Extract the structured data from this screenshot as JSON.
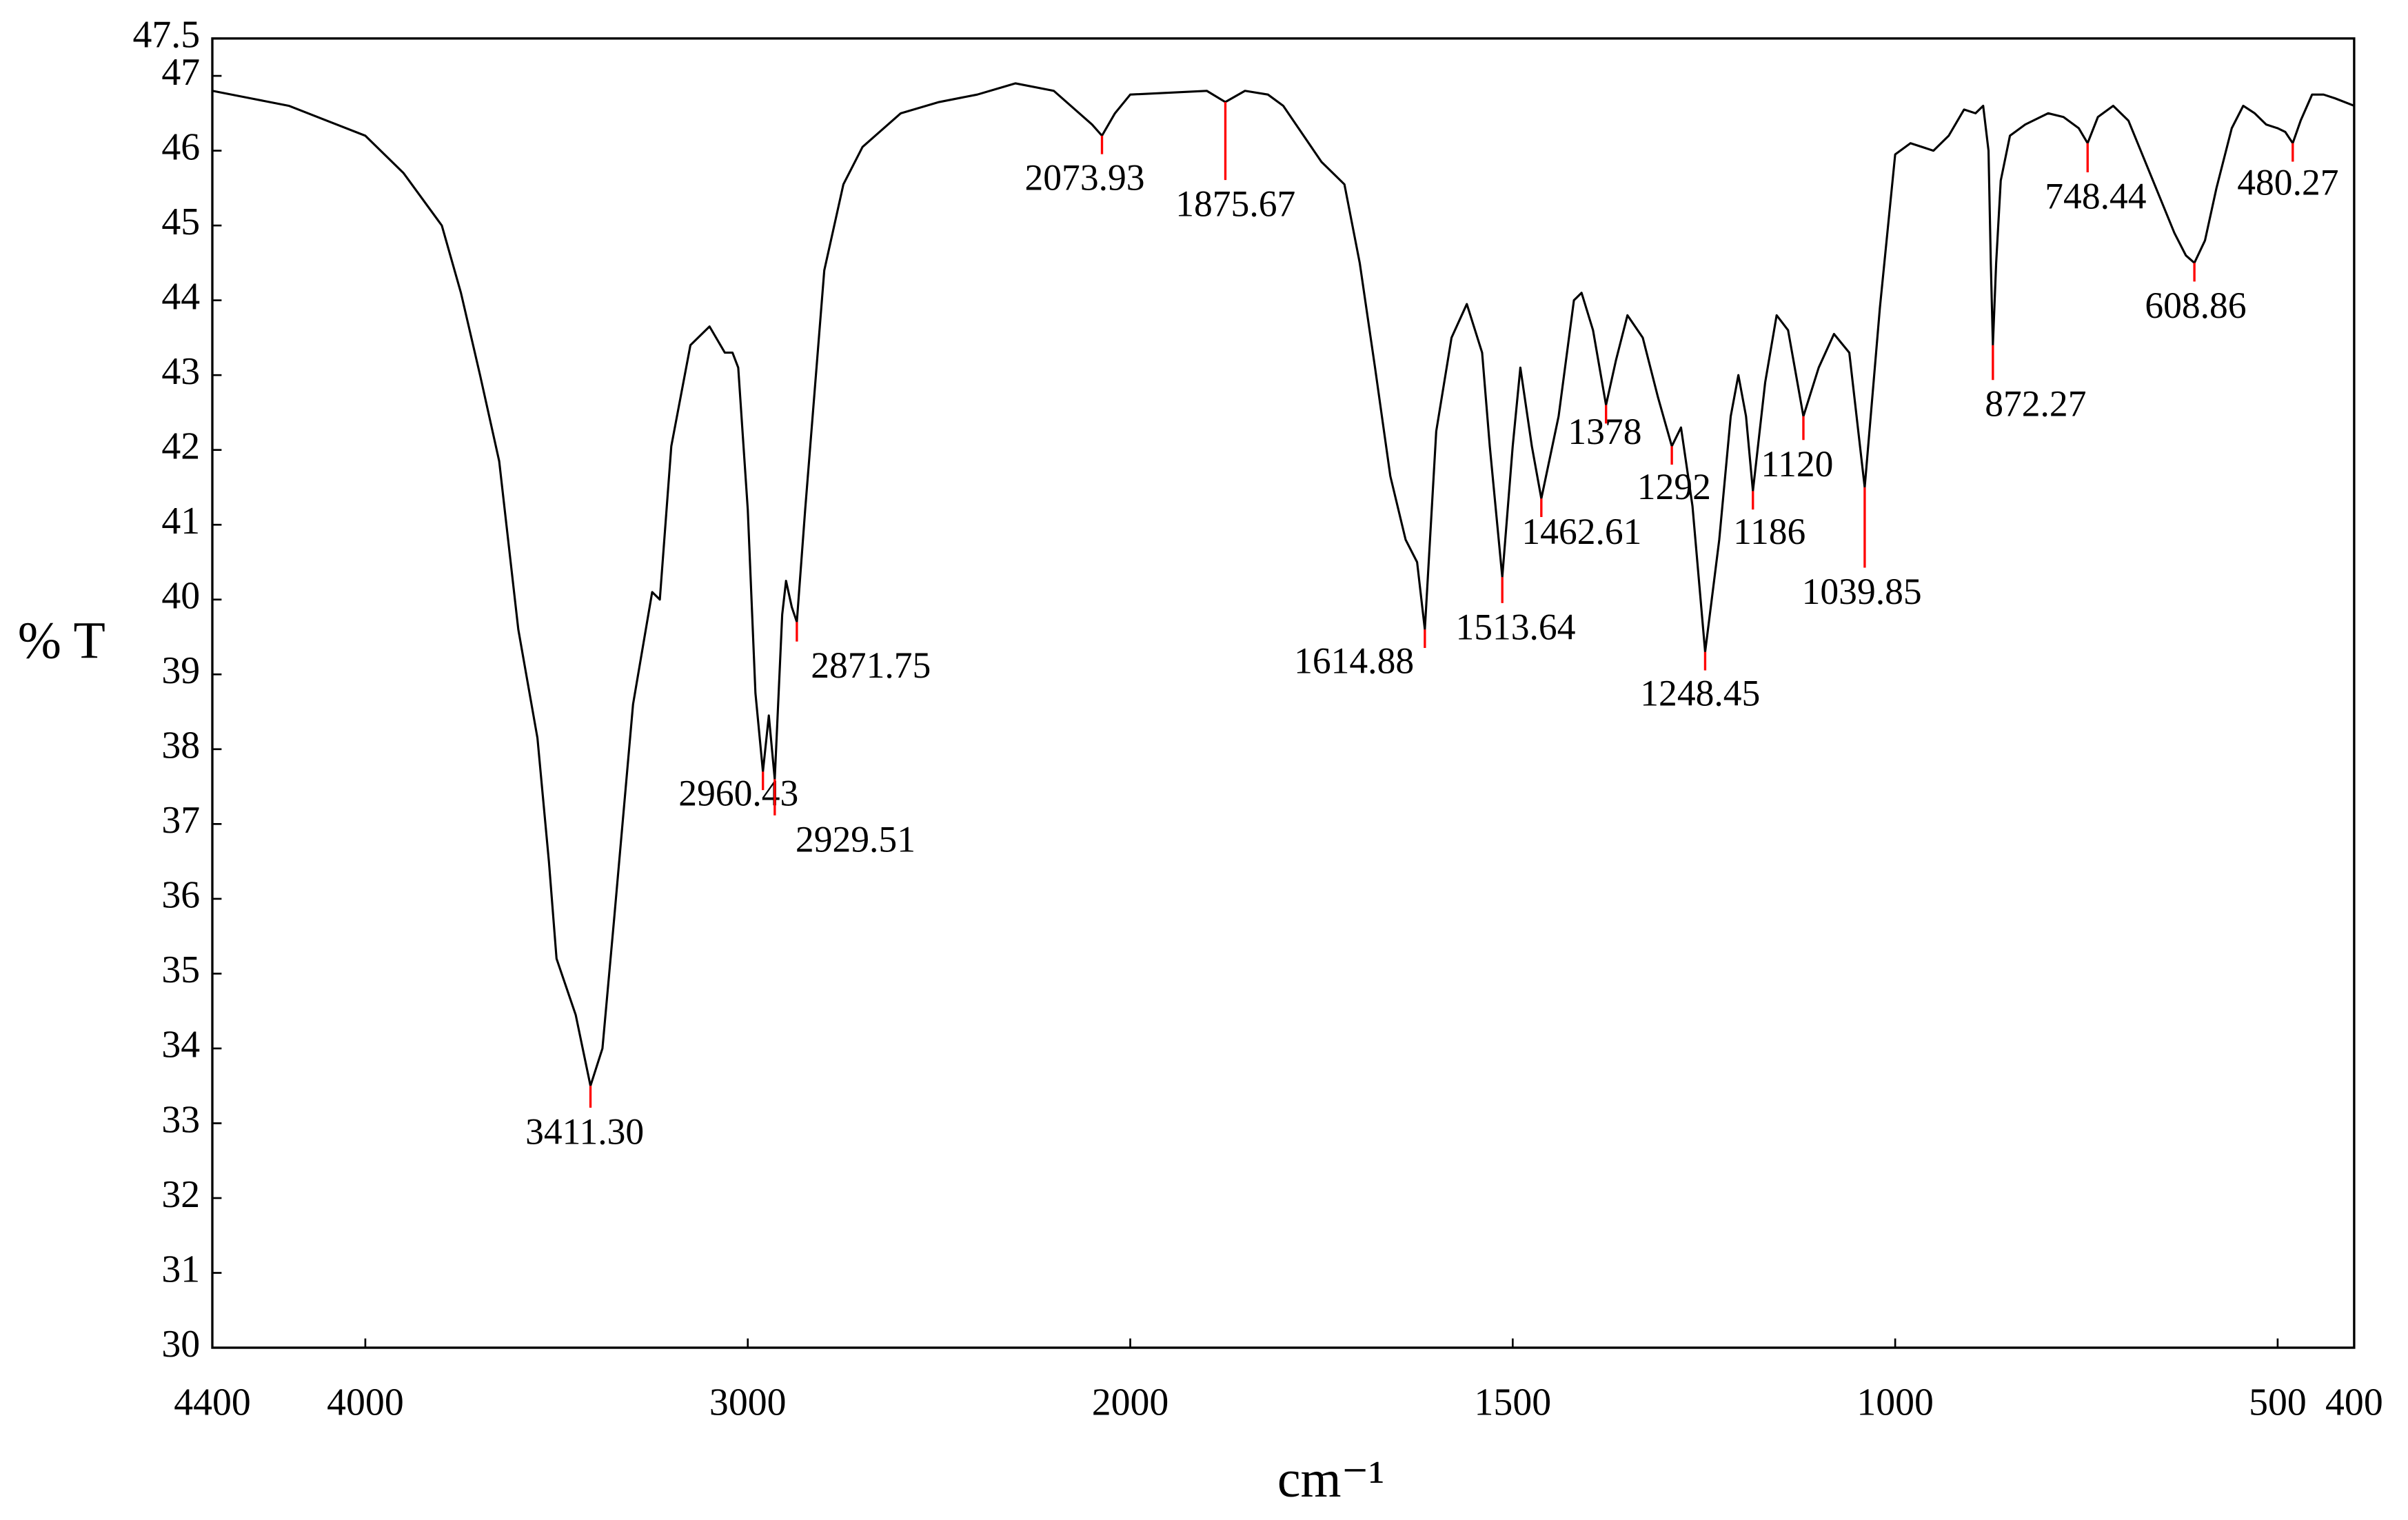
{
  "chart_data": {
    "type": "line",
    "xlabel": "cm⁻¹",
    "ylabel": "% T",
    "color": "#000000",
    "peak_color": "#ff0000",
    "grid": false,
    "xlim": [
      4400,
      400
    ],
    "x_scale_change": {
      "at": 2000,
      "factor": 2
    },
    "xticks": [
      4400,
      4000,
      3000,
      2000,
      1500,
      1000,
      500,
      400
    ],
    "ylim": [
      30,
      47.5
    ],
    "yticks": [
      30,
      31,
      32,
      33,
      34,
      35,
      36,
      37,
      38,
      39,
      40,
      41,
      42,
      43,
      44,
      45,
      46,
      47,
      47.5
    ],
    "x": [
      4400,
      4300,
      4200,
      4100,
      4000,
      3900,
      3800,
      3750,
      3700,
      3650,
      3600,
      3550,
      3520,
      3500,
      3450,
      3411.3,
      3380,
      3350,
      3300,
      3250,
      3230,
      3200,
      3150,
      3100,
      3060,
      3040,
      3025,
      3000,
      2980,
      2960.43,
      2945,
      2929.51,
      2910,
      2900,
      2885,
      2871.75,
      2850,
      2800,
      2750,
      2700,
      2600,
      2500,
      2400,
      2300,
      2200,
      2100,
      2073.93,
      2040,
      2000,
      1900,
      1875.67,
      1850,
      1820,
      1800,
      1780,
      1750,
      1720,
      1700,
      1680,
      1660,
      1640,
      1625,
      1614.88,
      1600,
      1580,
      1560,
      1540,
      1530,
      1513.64,
      1500,
      1490,
      1475,
      1462.61,
      1440,
      1420,
      1410,
      1395,
      1378,
      1365,
      1350,
      1330,
      1310,
      1292,
      1280,
      1265,
      1248.45,
      1230,
      1215,
      1205,
      1195,
      1186,
      1170,
      1155,
      1140,
      1120,
      1100,
      1080,
      1060,
      1039.85,
      1020,
      1000,
      980,
      950,
      930,
      910,
      895,
      885,
      878,
      875,
      872.27,
      868,
      862,
      850,
      830,
      800,
      780,
      760,
      748.44,
      735,
      715,
      695,
      675,
      655,
      635,
      620,
      608.86,
      595,
      580,
      560,
      545,
      530,
      515,
      500,
      490,
      480.27,
      470,
      455,
      440,
      425,
      400
    ],
    "values": [
      46.8,
      46.7,
      46.6,
      46.4,
      46.2,
      45.7,
      45.0,
      44.1,
      43.0,
      41.85,
      39.6,
      38.15,
      36.5,
      35.2,
      34.45,
      33.5,
      34.0,
      35.7,
      38.6,
      40.1,
      40.0,
      42.05,
      43.4,
      43.65,
      43.3,
      43.3,
      43.1,
      41.2,
      38.75,
      37.7,
      38.45,
      37.6,
      39.8,
      40.25,
      39.9,
      39.7,
      41.2,
      44.4,
      45.55,
      46.05,
      46.5,
      46.65,
      46.75,
      46.9,
      46.8,
      46.35,
      46.2,
      46.5,
      46.75,
      46.8,
      46.65,
      46.8,
      46.75,
      46.6,
      46.3,
      45.85,
      45.55,
      44.5,
      43.1,
      41.65,
      40.8,
      40.5,
      39.6,
      42.25,
      43.5,
      43.95,
      43.3,
      42.05,
      40.3,
      42.05,
      43.1,
      42.05,
      41.35,
      42.45,
      44.0,
      44.1,
      43.6,
      42.6,
      43.2,
      43.8,
      43.5,
      42.7,
      42.05,
      42.3,
      41.25,
      39.3,
      40.8,
      42.45,
      43.0,
      42.45,
      41.45,
      42.9,
      43.8,
      43.6,
      42.45,
      43.1,
      43.55,
      43.3,
      41.5,
      43.9,
      45.95,
      46.1,
      46.0,
      46.2,
      46.55,
      46.5,
      46.6,
      46.0,
      44.5,
      43.4,
      44.5,
      45.6,
      46.2,
      46.35,
      46.5,
      46.45,
      46.3,
      46.1,
      46.45,
      46.6,
      46.4,
      45.9,
      45.4,
      44.9,
      44.6,
      44.5,
      44.8,
      45.5,
      46.3,
      46.6,
      46.5,
      46.35,
      46.3,
      46.25,
      46.1,
      46.4,
      46.75,
      46.75,
      46.7,
      46.6
    ],
    "peaks": [
      {
        "x": 3411.3,
        "label": "3411.30"
      },
      {
        "x": 2960.43,
        "label": "2960.43"
      },
      {
        "x": 2929.51,
        "label": "2929.51"
      },
      {
        "x": 2871.75,
        "label": "2871.75"
      },
      {
        "x": 2073.93,
        "label": "2073.93"
      },
      {
        "x": 1875.67,
        "label": "1875.67"
      },
      {
        "x": 1614.88,
        "label": "1614.88"
      },
      {
        "x": 1513.64,
        "label": "1513.64"
      },
      {
        "x": 1462.61,
        "label": "1462.61"
      },
      {
        "x": 1378,
        "label": "1378"
      },
      {
        "x": 1292,
        "label": "1292"
      },
      {
        "x": 1248.45,
        "label": "1248.45"
      },
      {
        "x": 1186,
        "label": "1186"
      },
      {
        "x": 1120,
        "label": "1120"
      },
      {
        "x": 1039.85,
        "label": "1039.85"
      },
      {
        "x": 872.27,
        "label": "872.27"
      },
      {
        "x": 748.44,
        "label": "748.44"
      },
      {
        "x": 608.86,
        "label": "608.86"
      },
      {
        "x": 480.27,
        "label": "480.27"
      }
    ]
  }
}
